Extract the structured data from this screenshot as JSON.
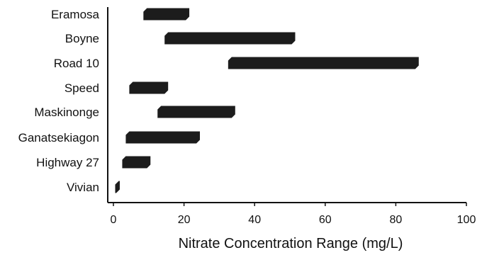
{
  "chart_data": {
    "type": "bar",
    "orientation": "horizontal",
    "subtype": "range",
    "title": "",
    "xlabel": "Nitrate Concentration Range (mg/L)",
    "ylabel": "",
    "xlim": [
      0,
      100
    ],
    "xticks": [
      0,
      20,
      40,
      60,
      80,
      100
    ],
    "grid": false,
    "categories": [
      "Eramosa",
      "Boyne",
      "Road 10",
      "Speed",
      "Maskinonge",
      "Ganatsekiagon",
      "Highway 27",
      "Vivian"
    ],
    "ranges": [
      {
        "category": "Eramosa",
        "min": 8.5,
        "max": 21.5
      },
      {
        "category": "Boyne",
        "min": 14.5,
        "max": 51.5
      },
      {
        "category": "Road 10",
        "min": 32.5,
        "max": 86.5
      },
      {
        "category": "Speed",
        "min": 4.5,
        "max": 15.5
      },
      {
        "category": "Maskinonge",
        "min": 12.5,
        "max": 34.5
      },
      {
        "category": "Ganatsekiagon",
        "min": 3.5,
        "max": 24.5
      },
      {
        "category": "Highway 27",
        "min": 2.5,
        "max": 10.5
      },
      {
        "category": "Vivian",
        "min": 0.5,
        "max": 1.8
      }
    ],
    "bar_color": "#1c1c1c"
  }
}
